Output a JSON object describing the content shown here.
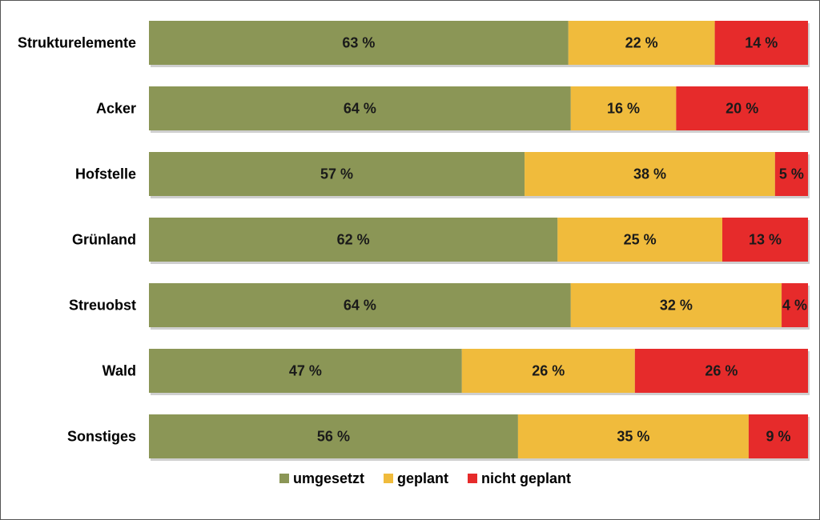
{
  "chart_data": {
    "type": "bar",
    "orientation": "horizontal",
    "stacked": true,
    "categories": [
      "Strukturelemente",
      "Acker",
      "Hofstelle",
      "Grünland",
      "Streuobst",
      "Wald",
      "Sonstiges"
    ],
    "series": [
      {
        "name": "umgesetzt",
        "color": "#8b9656",
        "values": [
          63,
          64,
          57,
          62,
          64,
          47,
          56
        ],
        "labels": [
          "63 %",
          "64 %",
          "57 %",
          "62 %",
          "64 %",
          "47 %",
          "56 %"
        ]
      },
      {
        "name": "geplant",
        "color": "#f0bb3c",
        "values": [
          22,
          16,
          38,
          25,
          32,
          26,
          35
        ],
        "labels": [
          "22 %",
          "16 %",
          "38 %",
          "25 %",
          "32 %",
          "26 %",
          "35 %"
        ]
      },
      {
        "name": "nicht geplant",
        "color": "#e62b2b",
        "values": [
          14,
          20,
          5,
          13,
          4,
          26,
          9
        ],
        "labels": [
          "14 %",
          "20 %",
          "5 %",
          "13 %",
          "4 %",
          "26 %",
          "9 %"
        ]
      }
    ],
    "unit": "%",
    "legend_position": "bottom",
    "grid": false
  }
}
